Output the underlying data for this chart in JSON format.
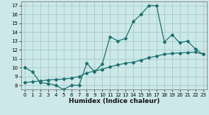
{
  "xlabel": "Humidex (Indice chaleur)",
  "bg_color": "#cce8e8",
  "grid_color": "#aacece",
  "line_color": "#1e7070",
  "xlim": [
    -0.5,
    23.5
  ],
  "ylim": [
    7.5,
    17.5
  ],
  "xticks": [
    0,
    1,
    2,
    3,
    4,
    5,
    6,
    7,
    8,
    9,
    10,
    11,
    12,
    13,
    14,
    15,
    16,
    17,
    18,
    19,
    20,
    21,
    22,
    23
  ],
  "yticks": [
    8,
    9,
    10,
    11,
    12,
    13,
    14,
    15,
    16,
    17
  ],
  "line1_x": [
    0,
    1,
    2,
    3,
    4,
    5,
    6,
    7,
    8,
    9,
    10,
    11,
    12,
    13,
    14,
    15,
    16,
    17,
    18,
    19,
    20,
    21,
    22,
    23
  ],
  "line1_y": [
    10.0,
    9.5,
    8.3,
    8.2,
    8.0,
    7.5,
    8.0,
    8.0,
    10.5,
    9.5,
    10.4,
    13.5,
    13.0,
    13.3,
    15.2,
    16.0,
    17.0,
    17.0,
    12.9,
    13.7,
    12.8,
    13.0,
    12.1,
    11.5
  ],
  "line2_x": [
    0,
    1,
    2,
    3,
    4,
    5,
    6,
    7,
    8,
    9,
    10,
    11,
    12,
    13,
    14,
    15,
    16,
    17,
    18,
    19,
    20,
    21,
    22,
    23
  ],
  "line2_y": [
    8.3,
    8.4,
    8.5,
    8.6,
    8.65,
    8.7,
    8.8,
    9.0,
    9.4,
    9.6,
    9.8,
    10.1,
    10.3,
    10.5,
    10.6,
    10.85,
    11.1,
    11.3,
    11.5,
    11.6,
    11.65,
    11.7,
    11.75,
    11.5
  ]
}
